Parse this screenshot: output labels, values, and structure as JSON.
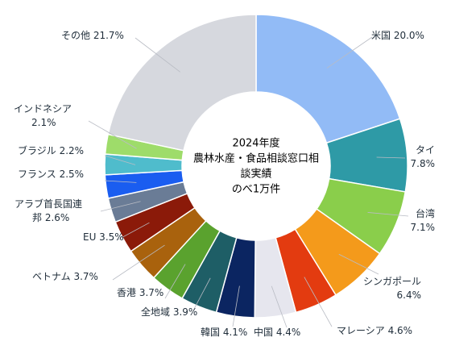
{
  "chart_data": {
    "type": "pie",
    "title": "2024年度\n農林水産・食品相談窓口相\n談実績\nのべ1万件",
    "donut": true,
    "slices": [
      {
        "label": "米国",
        "label_lines": [
          "米国 20.0%"
        ],
        "value": 20.0,
        "color": "#92bbf6"
      },
      {
        "label": "タイ",
        "label_lines": [
          "タイ",
          "7.8%"
        ],
        "value": 7.8,
        "color": "#2e9aa6"
      },
      {
        "label": "台湾",
        "label_lines": [
          "台湾",
          "7.1%"
        ],
        "value": 7.1,
        "color": "#8ace4b"
      },
      {
        "label": "シンガポール",
        "label_lines": [
          "シンガポール",
          "6.4%"
        ],
        "value": 6.4,
        "color": "#f49a1b"
      },
      {
        "label": "マレーシア",
        "label_lines": [
          "マレーシア 4.6%"
        ],
        "value": 4.6,
        "color": "#e33b10"
      },
      {
        "label": "中国",
        "label_lines": [
          "中国 4.4%"
        ],
        "value": 4.4,
        "color": "#e6e6ee"
      },
      {
        "label": "韓国",
        "label_lines": [
          "韓国 4.1%"
        ],
        "value": 4.1,
        "color": "#0b2561"
      },
      {
        "label": "全地域",
        "label_lines": [
          "全地域 3.9%"
        ],
        "value": 3.9,
        "color": "#1e5e66"
      },
      {
        "label": "香港",
        "label_lines": [
          "香港 3.7%"
        ],
        "value": 3.7,
        "color": "#5aa22e"
      },
      {
        "label": "ベトナム",
        "label_lines": [
          "ベトナム 3.7%"
        ],
        "value": 3.7,
        "color": "#a9620d"
      },
      {
        "label": "EU",
        "label_lines": [
          "EU 3.5%"
        ],
        "value": 3.5,
        "color": "#8b1a09"
      },
      {
        "label": "アラブ首長国連邦",
        "label_lines": [
          "アラブ首長国連",
          "邦 2.6%"
        ],
        "value": 2.6,
        "color": "#6a7c96"
      },
      {
        "label": "フランス",
        "label_lines": [
          "フランス 2.5%"
        ],
        "value": 2.5,
        "color": "#1a5df0"
      },
      {
        "label": "ブラジル",
        "label_lines": [
          "ブラジル 2.2%"
        ],
        "value": 2.2,
        "color": "#4fbccc"
      },
      {
        "label": "インドネシア",
        "label_lines": [
          "インドネシア",
          "2.1%"
        ],
        "value": 2.1,
        "color": "#9edc6a"
      },
      {
        "label": "その他",
        "label_lines": [
          "その他 21.7%"
        ],
        "value": 21.7,
        "color": "#d6d8de"
      }
    ]
  }
}
